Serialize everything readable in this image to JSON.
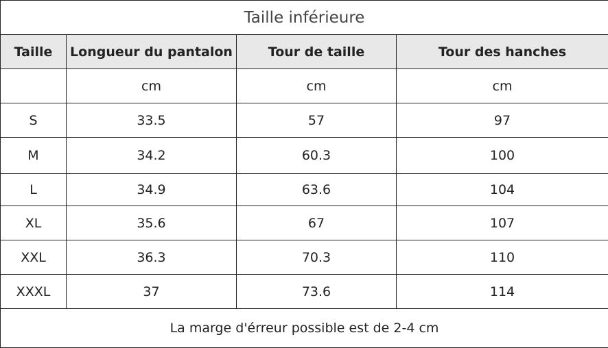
{
  "title": "Taille inférieure",
  "table": {
    "header": [
      "Taille",
      "Longueur du pantalon",
      "Tour de taille",
      "Tour des hanches"
    ],
    "units": [
      "cm",
      "cm",
      "cm"
    ],
    "rows": [
      [
        "S",
        "33.5",
        "57",
        "97"
      ],
      [
        "M",
        "34.2",
        "60.3",
        "100"
      ],
      [
        "L",
        "34.9",
        "63.6",
        "104"
      ],
      [
        "XL",
        "35.6",
        "67",
        "107"
      ],
      [
        "XXL",
        "36.3",
        "70.3",
        "110"
      ],
      [
        "XXXL",
        "37",
        "73.6",
        "114"
      ]
    ]
  },
  "footer": "La marge d'érreur possible est de 2-4 cm"
}
